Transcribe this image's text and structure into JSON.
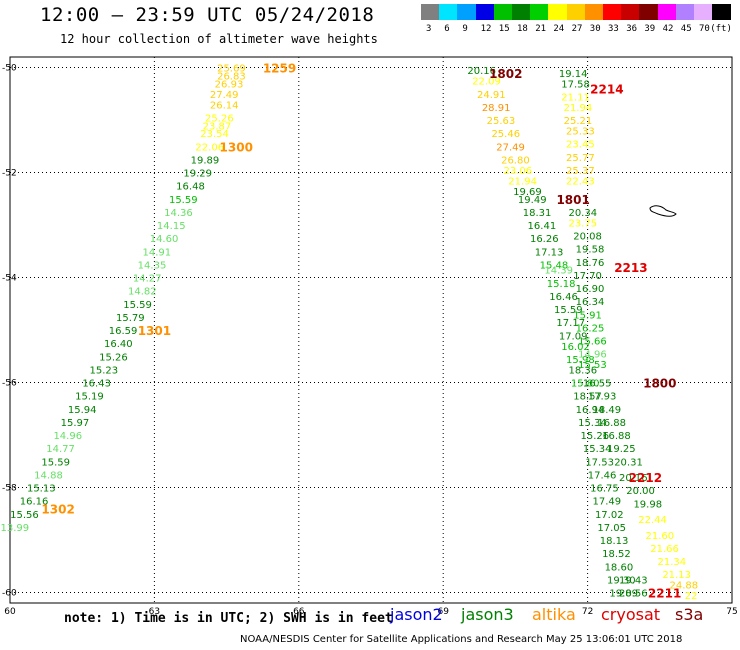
{
  "header": {
    "title": "12:00 — 23:59 UTC 05/24/2018",
    "subtitle": "12 hour collection of altimeter wave heights"
  },
  "legend": {
    "colors": [
      "#808080",
      "#00e5ff",
      "#00a0ff",
      "#0000e6",
      "#00c000",
      "#008000",
      "#00d000",
      "#ffff00",
      "#ffd000",
      "#ff9000",
      "#ff0000",
      "#c80000",
      "#800000",
      "#ff00ff",
      "#b080ff",
      "#e6b0ff",
      "#000000"
    ],
    "labels": [
      "3",
      "6",
      "9",
      "12",
      "15",
      "18",
      "21",
      "24",
      "27",
      "30",
      "33",
      "36",
      "39",
      "42",
      "45",
      "70",
      "(ft)"
    ]
  },
  "axes": {
    "lon_labels": [
      "60",
      "63",
      "66",
      "69",
      "72",
      "75"
    ],
    "lat_labels": [
      "-50",
      "-52",
      "-54",
      "-56",
      "-58",
      "-60"
    ]
  },
  "chart_data": {
    "type": "map",
    "x_range": [
      60,
      75
    ],
    "y_range": [
      -60.2,
      -49.8
    ],
    "units": "ft",
    "time_labels": [
      {
        "text": "1259",
        "lon": 65.6,
        "lat": -50.0,
        "color": "#ff9000"
      },
      {
        "text": "1300",
        "lon": 64.7,
        "lat": -51.5,
        "color": "#ff9000"
      },
      {
        "text": "1301",
        "lon": 63.0,
        "lat": -55.0,
        "color": "#ff9000"
      },
      {
        "text": "1302",
        "lon": 61.0,
        "lat": -58.4,
        "color": "#ff9000"
      },
      {
        "text": "1802",
        "lon": 70.3,
        "lat": -50.1,
        "color": "#800000"
      },
      {
        "text": "2214",
        "lon": 72.4,
        "lat": -50.4,
        "color": "#e00000"
      },
      {
        "text": "1801",
        "lon": 71.7,
        "lat": -52.5,
        "color": "#800000"
      },
      {
        "text": "2213",
        "lon": 72.9,
        "lat": -53.8,
        "color": "#e00000"
      },
      {
        "text": "1800",
        "lon": 73.5,
        "lat": -56.0,
        "color": "#800000"
      },
      {
        "text": "2212",
        "lon": 73.2,
        "lat": -57.8,
        "color": "#e00000"
      },
      {
        "text": "2211",
        "lon": 73.6,
        "lat": -60.0,
        "color": "#e00000"
      }
    ],
    "tracks": [
      {
        "values": [
          {
            "v": "25.69",
            "lon": 64.6,
            "lat": -50.0,
            "c": "#ffd000"
          },
          {
            "v": "26.83",
            "lon": 64.6,
            "lat": -50.15,
            "c": "#ffd000"
          },
          {
            "v": "26.93",
            "lon": 64.55,
            "lat": -50.3,
            "c": "#ffd000"
          },
          {
            "v": "27.49",
            "lon": 64.45,
            "lat": -50.5,
            "c": "#ffd000"
          },
          {
            "v": "26.14",
            "lon": 64.45,
            "lat": -50.7,
            "c": "#ffd000"
          },
          {
            "v": "25.26",
            "lon": 64.35,
            "lat": -50.95,
            "c": "#ffff00"
          },
          {
            "v": "23.87",
            "lon": 64.3,
            "lat": -51.1,
            "c": "#ffff00"
          },
          {
            "v": "23.54",
            "lon": 64.25,
            "lat": -51.25,
            "c": "#ffff00"
          },
          {
            "v": "22.06",
            "lon": 64.15,
            "lat": -51.5,
            "c": "#ffff00"
          },
          {
            "v": "19.89",
            "lon": 64.05,
            "lat": -51.75,
            "c": "#008000"
          },
          {
            "v": "19.29",
            "lon": 63.9,
            "lat": -52.0,
            "c": "#008000"
          },
          {
            "v": "16.48",
            "lon": 63.75,
            "lat": -52.25,
            "c": "#008000"
          },
          {
            "v": "15.59",
            "lon": 63.6,
            "lat": -52.5,
            "c": "#00c000"
          },
          {
            "v": "14.36",
            "lon": 63.5,
            "lat": -52.75,
            "c": "#66e066"
          },
          {
            "v": "14.15",
            "lon": 63.35,
            "lat": -53.0,
            "c": "#66e066"
          },
          {
            "v": "14.60",
            "lon": 63.2,
            "lat": -53.25,
            "c": "#66e066"
          },
          {
            "v": "14.91",
            "lon": 63.05,
            "lat": -53.5,
            "c": "#66e066"
          },
          {
            "v": "14.35",
            "lon": 62.95,
            "lat": -53.75,
            "c": "#66e066"
          },
          {
            "v": "14.27",
            "lon": 62.85,
            "lat": -54.0,
            "c": "#66e066"
          },
          {
            "v": "14.82",
            "lon": 62.75,
            "lat": -54.25,
            "c": "#66e066"
          },
          {
            "v": "15.59",
            "lon": 62.65,
            "lat": -54.5,
            "c": "#008000"
          },
          {
            "v": "15.79",
            "lon": 62.5,
            "lat": -54.75,
            "c": "#008000"
          },
          {
            "v": "16.59",
            "lon": 62.35,
            "lat": -55.0,
            "c": "#008000"
          },
          {
            "v": "16.40",
            "lon": 62.25,
            "lat": -55.25,
            "c": "#008000"
          },
          {
            "v": "15.26",
            "lon": 62.15,
            "lat": -55.5,
            "c": "#008000"
          },
          {
            "v": "15.23",
            "lon": 61.95,
            "lat": -55.75,
            "c": "#008000"
          },
          {
            "v": "16.43",
            "lon": 61.8,
            "lat": -56.0,
            "c": "#008000"
          },
          {
            "v": "15.19",
            "lon": 61.65,
            "lat": -56.25,
            "c": "#008000"
          },
          {
            "v": "15.94",
            "lon": 61.5,
            "lat": -56.5,
            "c": "#008000"
          },
          {
            "v": "15.97",
            "lon": 61.35,
            "lat": -56.75,
            "c": "#008000"
          },
          {
            "v": "14.96",
            "lon": 61.2,
            "lat": -57.0,
            "c": "#66e066"
          },
          {
            "v": "14.77",
            "lon": 61.05,
            "lat": -57.25,
            "c": "#66e066"
          },
          {
            "v": "15.59",
            "lon": 60.95,
            "lat": -57.5,
            "c": "#008000"
          },
          {
            "v": "14.88",
            "lon": 60.8,
            "lat": -57.75,
            "c": "#66e066"
          },
          {
            "v": "15.13",
            "lon": 60.65,
            "lat": -58.0,
            "c": "#008000"
          },
          {
            "v": "16.16",
            "lon": 60.5,
            "lat": -58.25,
            "c": "#008000"
          },
          {
            "v": "15.56",
            "lon": 60.3,
            "lat": -58.5,
            "c": "#008000"
          },
          {
            "v": "13.99",
            "lon": 60.1,
            "lat": -58.75,
            "c": "#66e066"
          }
        ]
      },
      {
        "values": [
          {
            "v": "20.16",
            "lon": 69.8,
            "lat": -50.05,
            "c": "#008000"
          },
          {
            "v": "22.09",
            "lon": 69.9,
            "lat": -50.25,
            "c": "#ffff00"
          },
          {
            "v": "24.91",
            "lon": 70.0,
            "lat": -50.5,
            "c": "#ffd000"
          },
          {
            "v": "28.91",
            "lon": 70.1,
            "lat": -50.75,
            "c": "#ff9000"
          },
          {
            "v": "25.63",
            "lon": 70.2,
            "lat": -51.0,
            "c": "#ffd000"
          },
          {
            "v": "25.46",
            "lon": 70.3,
            "lat": -51.25,
            "c": "#ffd000"
          },
          {
            "v": "27.49",
            "lon": 70.4,
            "lat": -51.5,
            "c": "#ff9000"
          },
          {
            "v": "26.80",
            "lon": 70.5,
            "lat": -51.75,
            "c": "#ffd000"
          },
          {
            "v": "23.06",
            "lon": 70.55,
            "lat": -51.95,
            "c": "#ffff00"
          },
          {
            "v": "21.94",
            "lon": 70.65,
            "lat": -52.15,
            "c": "#ffff00"
          },
          {
            "v": "19.69",
            "lon": 70.75,
            "lat": -52.35,
            "c": "#008000"
          },
          {
            "v": "19.49",
            "lon": 70.85,
            "lat": -52.5,
            "c": "#008000"
          },
          {
            "v": "18.31",
            "lon": 70.95,
            "lat": -52.75,
            "c": "#008000"
          },
          {
            "v": "16.41",
            "lon": 71.05,
            "lat": -53.0,
            "c": "#008000"
          },
          {
            "v": "16.26",
            "lon": 71.1,
            "lat": -53.25,
            "c": "#008000"
          },
          {
            "v": "17.13",
            "lon": 71.2,
            "lat": -53.5,
            "c": "#008000"
          },
          {
            "v": "15.48",
            "lon": 71.3,
            "lat": -53.75,
            "c": "#00c000"
          },
          {
            "v": "14.39",
            "lon": 71.4,
            "lat": -53.85,
            "c": "#66e066"
          },
          {
            "v": "15.18",
            "lon": 71.45,
            "lat": -54.1,
            "c": "#00c000"
          },
          {
            "v": "16.46",
            "lon": 71.5,
            "lat": -54.35,
            "c": "#008000"
          },
          {
            "v": "15.59",
            "lon": 71.6,
            "lat": -54.6,
            "c": "#008000"
          },
          {
            "v": "17.17",
            "lon": 71.65,
            "lat": -54.85,
            "c": "#008000"
          },
          {
            "v": "17.09",
            "lon": 71.7,
            "lat": -55.1,
            "c": "#008000"
          },
          {
            "v": "16.02",
            "lon": 71.75,
            "lat": -55.3,
            "c": "#00c000"
          },
          {
            "v": "15.98",
            "lon": 71.85,
            "lat": -55.55,
            "c": "#00c000"
          },
          {
            "v": "18.36",
            "lon": 71.9,
            "lat": -55.75,
            "c": "#008000"
          },
          {
            "v": "15.80",
            "lon": 71.95,
            "lat": -56.0,
            "c": "#00c000"
          },
          {
            "v": "18.57",
            "lon": 72.0,
            "lat": -56.25,
            "c": "#008000"
          },
          {
            "v": "16.94",
            "lon": 72.05,
            "lat": -56.5,
            "c": "#008000"
          },
          {
            "v": "15.34",
            "lon": 72.1,
            "lat": -56.75,
            "c": "#008000"
          },
          {
            "v": "15.26",
            "lon": 72.15,
            "lat": -57.0,
            "c": "#008000"
          },
          {
            "v": "15.34",
            "lon": 72.2,
            "lat": -57.25,
            "c": "#008000"
          },
          {
            "v": "17.53",
            "lon": 72.25,
            "lat": -57.5,
            "c": "#008000"
          },
          {
            "v": "17.46",
            "lon": 72.3,
            "lat": -57.75,
            "c": "#008000"
          },
          {
            "v": "16.75",
            "lon": 72.35,
            "lat": -58.0,
            "c": "#008000"
          },
          {
            "v": "17.49",
            "lon": 72.4,
            "lat": -58.25,
            "c": "#008000"
          },
          {
            "v": "17.02",
            "lon": 72.45,
            "lat": -58.5,
            "c": "#008000"
          },
          {
            "v": "17.05",
            "lon": 72.5,
            "lat": -58.75,
            "c": "#008000"
          },
          {
            "v": "18.13",
            "lon": 72.55,
            "lat": -59.0,
            "c": "#008000"
          },
          {
            "v": "18.52",
            "lon": 72.6,
            "lat": -59.25,
            "c": "#008000"
          },
          {
            "v": "18.60",
            "lon": 72.65,
            "lat": -59.5,
            "c": "#008000"
          },
          {
            "v": "19.30",
            "lon": 72.7,
            "lat": -59.75,
            "c": "#008000"
          },
          {
            "v": "19.89",
            "lon": 72.75,
            "lat": -60.0,
            "c": "#008000"
          }
        ]
      },
      {
        "values": [
          {
            "v": "19.14",
            "lon": 71.7,
            "lat": -50.1,
            "c": "#008000"
          },
          {
            "v": "17.58",
            "lon": 71.75,
            "lat": -50.3,
            "c": "#008000"
          },
          {
            "v": "21.11",
            "lon": 71.75,
            "lat": -50.55,
            "c": "#ffff00"
          },
          {
            "v": "21.94",
            "lon": 71.8,
            "lat": -50.75,
            "c": "#ffff00"
          },
          {
            "v": "25.21",
            "lon": 71.8,
            "lat": -51.0,
            "c": "#ffd000"
          },
          {
            "v": "25.33",
            "lon": 71.85,
            "lat": -51.2,
            "c": "#ffd000"
          },
          {
            "v": "23.45",
            "lon": 71.85,
            "lat": -51.45,
            "c": "#ffff00"
          },
          {
            "v": "25.77",
            "lon": 71.85,
            "lat": -51.7,
            "c": "#ffd000"
          },
          {
            "v": "25.37",
            "lon": 71.85,
            "lat": -51.95,
            "c": "#ffd000"
          },
          {
            "v": "22.43",
            "lon": 71.85,
            "lat": -52.15,
            "c": "#ffff00"
          },
          {
            "v": "20.34",
            "lon": 71.9,
            "lat": -52.75,
            "c": "#008000"
          },
          {
            "v": "23.75",
            "lon": 71.9,
            "lat": -52.95,
            "c": "#ffff00"
          },
          {
            "v": "20.08",
            "lon": 72.0,
            "lat": -53.2,
            "c": "#008000"
          },
          {
            "v": "19.58",
            "lon": 72.05,
            "lat": -53.45,
            "c": "#008000"
          },
          {
            "v": "18.76",
            "lon": 72.05,
            "lat": -53.7,
            "c": "#008000"
          },
          {
            "v": "17.70",
            "lon": 72.0,
            "lat": -53.95,
            "c": "#008000"
          },
          {
            "v": "16.90",
            "lon": 72.05,
            "lat": -54.2,
            "c": "#008000"
          },
          {
            "v": "16.34",
            "lon": 72.05,
            "lat": -54.45,
            "c": "#008000"
          },
          {
            "v": "15.91",
            "lon": 72.0,
            "lat": -54.7,
            "c": "#00c000"
          },
          {
            "v": "16.25",
            "lon": 72.05,
            "lat": -54.95,
            "c": "#00c000"
          },
          {
            "v": "15.66",
            "lon": 72.1,
            "lat": -55.2,
            "c": "#00c000"
          },
          {
            "v": "14.96",
            "lon": 72.1,
            "lat": -55.45,
            "c": "#66e066"
          },
          {
            "v": "15.53",
            "lon": 72.1,
            "lat": -55.65,
            "c": "#00c000"
          },
          {
            "v": "16.55",
            "lon": 72.2,
            "lat": -56.0,
            "c": "#008000"
          },
          {
            "v": "17.93",
            "lon": 72.3,
            "lat": -56.25,
            "c": "#008000"
          },
          {
            "v": "18.49",
            "lon": 72.4,
            "lat": -56.5,
            "c": "#008000"
          },
          {
            "v": "16.88",
            "lon": 72.5,
            "lat": -56.75,
            "c": "#008000"
          },
          {
            "v": "16.88",
            "lon": 72.6,
            "lat": -57.0,
            "c": "#008000"
          },
          {
            "v": "19.25",
            "lon": 72.7,
            "lat": -57.25,
            "c": "#008000"
          },
          {
            "v": "20.31",
            "lon": 72.85,
            "lat": -57.5,
            "c": "#008000"
          },
          {
            "v": "20.16",
            "lon": 72.95,
            "lat": -57.8,
            "c": "#008000"
          },
          {
            "v": "20.00",
            "lon": 73.1,
            "lat": -58.05,
            "c": "#008000"
          },
          {
            "v": "19.98",
            "lon": 73.25,
            "lat": -58.3,
            "c": "#008000"
          },
          {
            "v": "22.44",
            "lon": 73.35,
            "lat": -58.6,
            "c": "#ffff00"
          },
          {
            "v": "21.60",
            "lon": 73.5,
            "lat": -58.9,
            "c": "#ffff00"
          },
          {
            "v": "21.66",
            "lon": 73.6,
            "lat": -59.15,
            "c": "#ffff00"
          },
          {
            "v": "21.34",
            "lon": 73.75,
            "lat": -59.4,
            "c": "#ffff00"
          },
          {
            "v": "21.13",
            "lon": 73.85,
            "lat": -59.65,
            "c": "#ffff00"
          },
          {
            "v": "24.88",
            "lon": 74.0,
            "lat": -59.85,
            "c": "#ffd000"
          },
          {
            "v": "22",
            "lon": 74.15,
            "lat": -60.05,
            "c": "#ffff00"
          },
          {
            "v": "19.43",
            "lon": 72.95,
            "lat": -59.75,
            "c": "#008000"
          },
          {
            "v": "20.56",
            "lon": 72.95,
            "lat": -60.0,
            "c": "#008000"
          }
        ]
      }
    ]
  },
  "footer": {
    "note": "note: 1) Time is in UTC; 2) SWH is in feet",
    "satellites": [
      {
        "name": "jason2",
        "color": "#0000e0"
      },
      {
        "name": "jason3",
        "color": "#008000"
      },
      {
        "name": "altika",
        "color": "#ff9000"
      },
      {
        "name": "cryosat",
        "color": "#e00000"
      },
      {
        "name": "s3a",
        "color": "#800000"
      }
    ],
    "credit": "NOAA/NESDIS Center for Satellite Applications and Research   May 25 13:06:01 UTC 2018"
  }
}
